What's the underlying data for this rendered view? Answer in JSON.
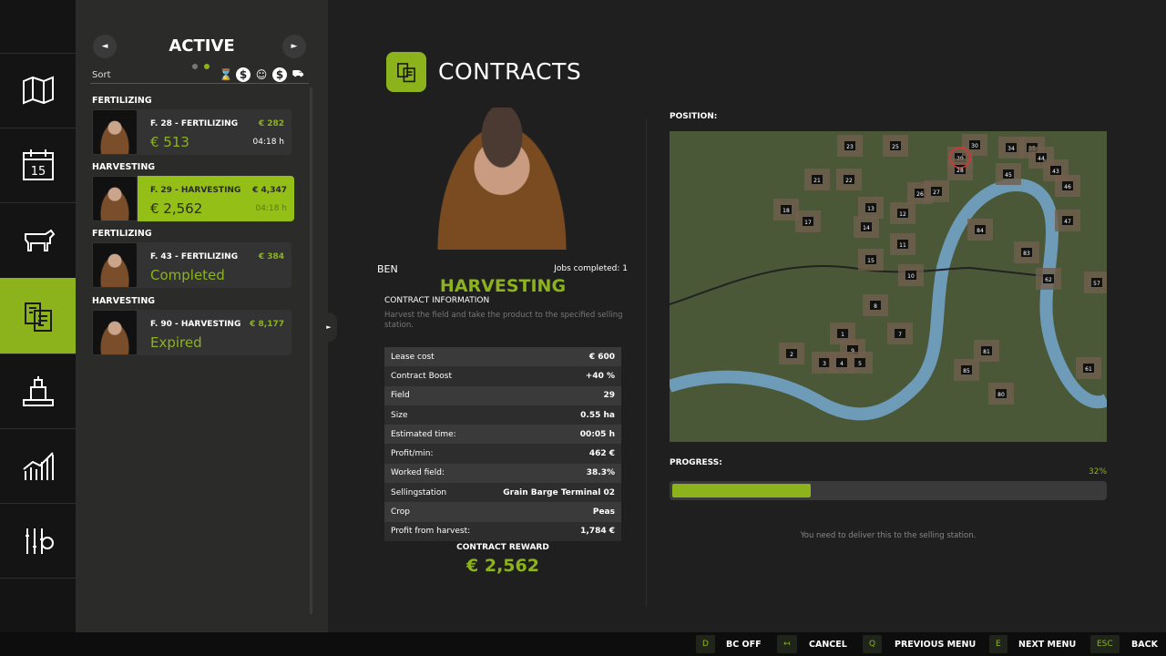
{
  "nav": {
    "items": [
      {
        "name": "map",
        "active": false
      },
      {
        "name": "calendar",
        "label": "15",
        "active": false
      },
      {
        "name": "animals",
        "active": false
      },
      {
        "name": "contracts",
        "active": true
      },
      {
        "name": "production",
        "active": false
      },
      {
        "name": "statistics",
        "active": false
      },
      {
        "name": "settings",
        "active": false
      }
    ]
  },
  "list": {
    "title": "ACTIVE",
    "sort_label": "Sort",
    "sort_icons": [
      "hourglass-icon",
      "price-gear-icon",
      "person-icon",
      "dollar-icon",
      "tractor-icon"
    ],
    "items": [
      {
        "category": "FERTILIZING",
        "name": "F. 28 - FERTILIZING",
        "price": "€ 282",
        "reward": "€ 513",
        "time": "04:18 h",
        "selected": false
      },
      {
        "category": "HARVESTING",
        "name": "F. 29 - HARVESTING",
        "price": "€ 4,347",
        "reward": "€ 2,562",
        "time": "04:18 h",
        "selected": true
      },
      {
        "category": "FERTILIZING",
        "name": "F. 43 - FERTILIZING",
        "price": "€ 384",
        "reward": "Completed",
        "time": "",
        "selected": false
      },
      {
        "category": "HARVESTING",
        "name": "F. 90 - HARVESTING",
        "price": "€ 8,177",
        "reward": "Expired",
        "time": "",
        "selected": false
      }
    ]
  },
  "header": {
    "title": "CONTRACTS"
  },
  "detail": {
    "npc": "BEN",
    "jobs": "Jobs completed: 1",
    "type": "HARVESTING",
    "info_title": "CONTRACT INFORMATION",
    "description": "Harvest the field and take the product to the specified selling station.",
    "rows": [
      [
        "Lease cost",
        "€ 600"
      ],
      [
        "Contract Boost",
        "+40 %"
      ],
      [
        "Field",
        "29"
      ],
      [
        "Size",
        "0.55 ha"
      ],
      [
        "Estimated time:",
        "00:05 h"
      ],
      [
        "Profit/min:",
        "462 €"
      ],
      [
        "Worked field:",
        "38.3%"
      ],
      [
        "Sellingstation",
        "Grain Barge Terminal 02"
      ],
      [
        "Crop",
        "Peas"
      ],
      [
        "Profit from harvest:",
        "1,784 €"
      ]
    ],
    "reward_label": "CONTRACT REWARD",
    "reward": "€ 2,562"
  },
  "position": {
    "label": "POSITION:",
    "fields": [
      "23",
      "25",
      "29",
      "30",
      "34",
      "35",
      "28",
      "44",
      "45",
      "43",
      "22",
      "21",
      "26",
      "27",
      "46",
      "18",
      "17",
      "13",
      "12",
      "14",
      "47",
      "84",
      "11",
      "83",
      "15",
      "57",
      "10",
      "62",
      "8",
      "7",
      "2",
      "1",
      "9",
      "3",
      "4",
      "5",
      "81",
      "85",
      "61",
      "80"
    ]
  },
  "progress": {
    "label": "PROGRESS:",
    "percent": 32,
    "percent_label": "32%",
    "note": "You need to deliver this to the selling station."
  },
  "footer": [
    {
      "key": "D",
      "label": "BC OFF"
    },
    {
      "key": "↤",
      "label": "CANCEL"
    },
    {
      "key": "Q",
      "label": "PREVIOUS MENU"
    },
    {
      "key": "E",
      "label": "NEXT MENU"
    },
    {
      "key": "ESC",
      "label": "BACK"
    }
  ],
  "colors": {
    "accent": "#8cb31c",
    "background": "#1f1f1f",
    "panel": "#2b2b2a"
  }
}
